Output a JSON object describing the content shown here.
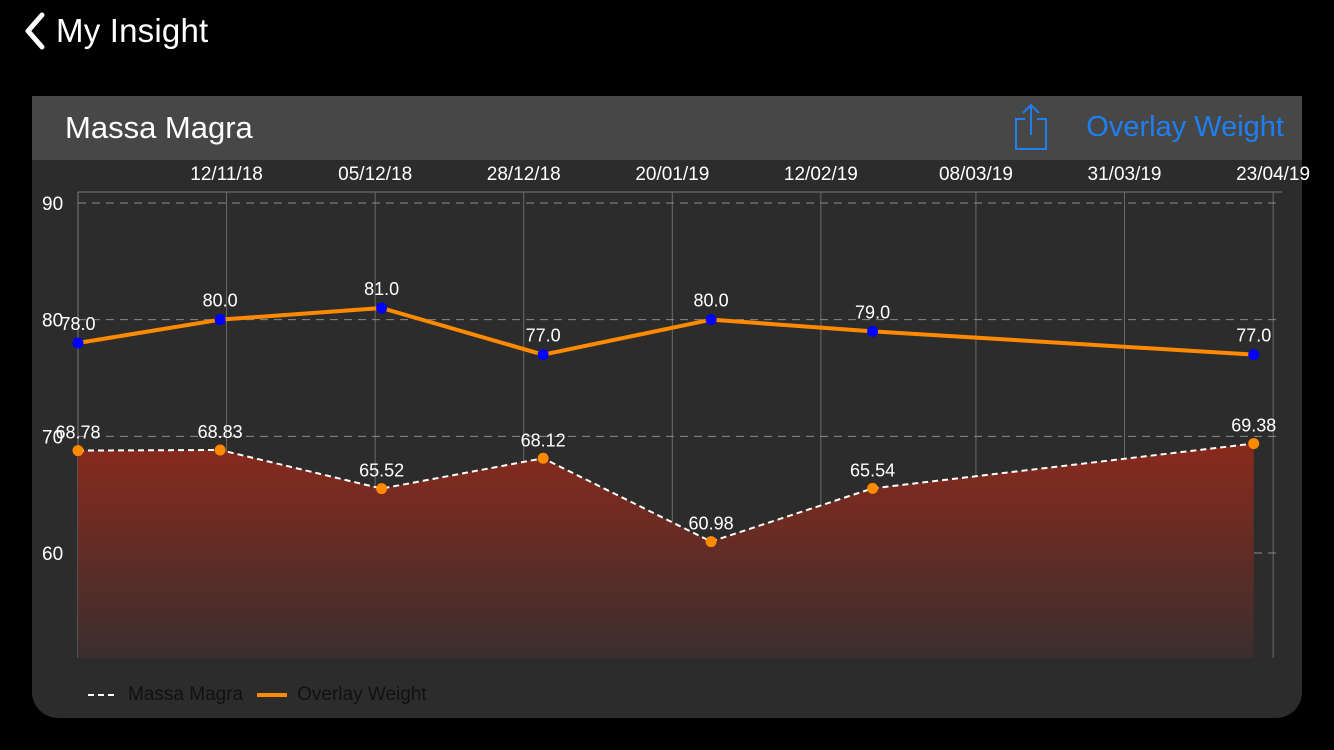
{
  "nav": {
    "back_label": "My Insight"
  },
  "card": {
    "title": "Massa Magra",
    "overlay_button_label": "Overlay Weight"
  },
  "icons": {
    "back": "chevron-left-icon",
    "share": "share-icon"
  },
  "colors": {
    "accent": "#1f7ff0",
    "overlay_line": "#ff8a00",
    "overlay_points": "#0000ff",
    "massa_points": "#ff8a00",
    "area_top": "#8a2a1c",
    "area_bottom": "#3a2e2e",
    "card_background": "#2c2c2c",
    "header_background": "#474747"
  },
  "chart_data": {
    "type": "line",
    "x_axis": {
      "position": "top",
      "tick_labels": [
        "12/11/18",
        "05/12/18",
        "28/12/18",
        "20/01/19",
        "12/02/19",
        "08/03/19",
        "31/03/19",
        "23/04/19"
      ]
    },
    "y_axis": {
      "tick_labels": [
        "90",
        "80",
        "70",
        "60"
      ],
      "ylim": [
        51,
        91
      ]
    },
    "grid": true,
    "legend_position": "bottom-left",
    "x": [
      "20/10/18",
      "11/11/18",
      "06/12/18",
      "31/12/18",
      "26/01/19",
      "20/02/19",
      "20/04/19"
    ],
    "series": [
      {
        "name": "Massa Magra",
        "style": "dashed-area",
        "values": [
          68.78,
          68.83,
          65.52,
          68.12,
          60.98,
          65.54,
          69.38
        ],
        "labels": [
          "68.78",
          "68.83",
          "65.52",
          "68.12",
          "60.98",
          "65.54",
          "69.38"
        ]
      },
      {
        "name": "Overlay Weight",
        "style": "solid",
        "values": [
          78.0,
          80.0,
          81.0,
          77.0,
          80.0,
          79.0,
          77.0
        ],
        "labels": [
          "78.0",
          "80.0",
          "81.0",
          "77.0",
          "80.0",
          "79.0",
          "77.0"
        ]
      }
    ]
  },
  "legend": {
    "items": [
      "Massa Magra",
      "Overlay Weight"
    ]
  }
}
